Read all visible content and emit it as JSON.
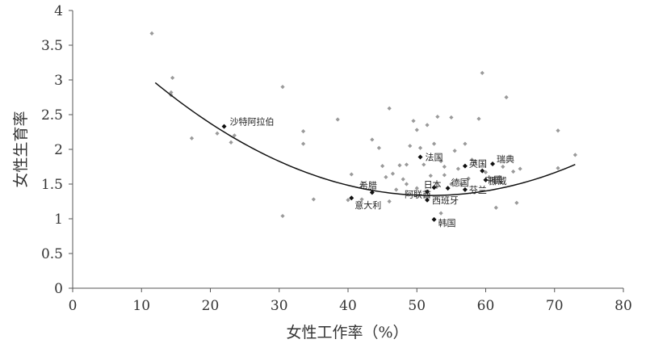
{
  "chart_data": {
    "type": "scatter",
    "xlabel": "女性工作率（%）",
    "ylabel": "女性生育率",
    "xlim": [
      0,
      80
    ],
    "ylim": [
      0,
      4
    ],
    "x_ticks": [
      0,
      10,
      20,
      30,
      40,
      50,
      60,
      70,
      80
    ],
    "y_ticks": [
      0,
      0.5,
      1,
      1.5,
      2,
      2.5,
      3,
      3.5,
      4
    ],
    "y_tick_labels": [
      "0",
      "0.5",
      "1",
      "1.5",
      "2",
      "2.5",
      "3",
      "3.5",
      "4"
    ],
    "grid": false,
    "legend": "none",
    "colors": {
      "points": "#9a9a9a",
      "highlighted_points": "#111111",
      "trend_line": "#111111",
      "axis": "#555555"
    },
    "trend_line": {
      "type": "quadratic",
      "coefficients": [
        4.08,
        -0.1055,
        0.001014
      ],
      "x_range": [
        12,
        73
      ]
    },
    "labeled_points": [
      {
        "label": "沙特阿拉伯",
        "x": 22,
        "y": 2.33
      },
      {
        "label": "法国",
        "x": 50.5,
        "y": 1.89
      },
      {
        "label": "英国",
        "x": 57,
        "y": 1.76
      },
      {
        "label": "瑞典",
        "x": 61,
        "y": 1.79
      },
      {
        "label": "中国",
        "x": 59.5,
        "y": 1.69
      },
      {
        "label": "挪威",
        "x": 60,
        "y": 1.56
      },
      {
        "label": "日本",
        "x": 52.5,
        "y": 1.45
      },
      {
        "label": "德国",
        "x": 54.5,
        "y": 1.44
      },
      {
        "label": "芬兰",
        "x": 57,
        "y": 1.42
      },
      {
        "label": "希腊",
        "x": 43.5,
        "y": 1.38
      },
      {
        "label": "阿联酋",
        "x": 51.5,
        "y": 1.39
      },
      {
        "label": "西班牙",
        "x": 51.5,
        "y": 1.27
      },
      {
        "label": "意大利",
        "x": 40.5,
        "y": 1.3
      },
      {
        "label": "韩国",
        "x": 52.5,
        "y": 0.99
      }
    ],
    "points": [
      [
        11.5,
        3.67
      ],
      [
        14.5,
        3.03
      ],
      [
        14.3,
        2.82
      ],
      [
        14.3,
        2.78
      ],
      [
        17.3,
        2.16
      ],
      [
        21,
        2.23
      ],
      [
        23,
        2.1
      ],
      [
        23.5,
        2.2
      ],
      [
        30.5,
        2.9
      ],
      [
        33.5,
        2.26
      ],
      [
        33.5,
        2.08
      ],
      [
        30.5,
        1.04
      ],
      [
        35,
        1.28
      ],
      [
        38.5,
        2.43
      ],
      [
        40,
        1.27
      ],
      [
        40.5,
        1.64
      ],
      [
        42,
        1.28
      ],
      [
        43.5,
        2.14
      ],
      [
        44.5,
        2.02
      ],
      [
        45,
        1.76
      ],
      [
        45.5,
        1.6
      ],
      [
        46,
        2.59
      ],
      [
        46,
        1.25
      ],
      [
        46.5,
        1.65
      ],
      [
        47,
        1.42
      ],
      [
        47.5,
        1.77
      ],
      [
        48,
        1.57
      ],
      [
        48.5,
        1.78
      ],
      [
        49,
        2.05
      ],
      [
        49.5,
        2.41
      ],
      [
        50,
        2.28
      ],
      [
        50.5,
        2.02
      ],
      [
        51,
        1.78
      ],
      [
        51.5,
        2.35
      ],
      [
        52,
        1.62
      ],
      [
        52.5,
        2.08
      ],
      [
        53,
        2.47
      ],
      [
        53.5,
        1.83
      ],
      [
        54,
        1.75
      ],
      [
        53.5,
        1.08
      ],
      [
        55,
        2.46
      ],
      [
        55.5,
        1.98
      ],
      [
        56,
        1.72
      ],
      [
        56.5,
        1.5
      ],
      [
        57,
        2.08
      ],
      [
        57.5,
        1.58
      ],
      [
        58,
        1.85
      ],
      [
        58.5,
        1.82
      ],
      [
        59,
        2.44
      ],
      [
        59.5,
        3.1
      ],
      [
        60,
        1.67
      ],
      [
        61.5,
        1.16
      ],
      [
        62,
        1.6
      ],
      [
        62.5,
        1.75
      ],
      [
        63,
        2.75
      ],
      [
        64,
        1.68
      ],
      [
        64.5,
        1.23
      ],
      [
        65,
        1.72
      ],
      [
        70.5,
        2.27
      ],
      [
        70.5,
        1.73
      ],
      [
        73,
        1.92
      ],
      [
        48.5,
        1.5
      ],
      [
        50,
        1.44
      ],
      [
        55,
        1.5
      ],
      [
        54,
        1.63
      ]
    ]
  }
}
